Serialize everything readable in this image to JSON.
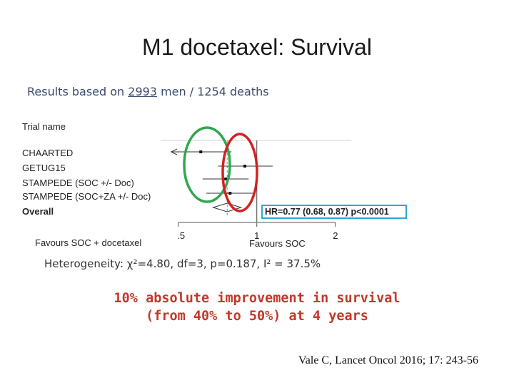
{
  "title": "M1 docetaxel: Survival",
  "subtitle": {
    "prefix": "Results based on ",
    "men": "2993",
    "middle": " men / 1254 deaths"
  },
  "chart_data": {
    "type": "forest",
    "column_header": "Trial name",
    "x_scale": "log",
    "xlim": [
      0.42,
      2.3
    ],
    "x_ticks": [
      0.5,
      1,
      2
    ],
    "x_tick_labels": [
      ".5",
      "1",
      "2"
    ],
    "reference_line": 1,
    "pooled_estimate_line": 0.77,
    "rows": [
      {
        "name": "CHAARTED",
        "hr": 0.61,
        "ci": [
          0.47,
          0.8
        ],
        "arrow_left": true,
        "bold": false,
        "kind": "study"
      },
      {
        "name": "GETUG15",
        "hr": 0.9,
        "ci": [
          0.71,
          1.15
        ],
        "bold": false,
        "kind": "study"
      },
      {
        "name": "STAMPEDE (SOC +/- Doc)",
        "hr": 0.76,
        "ci": [
          0.62,
          0.93
        ],
        "bold": false,
        "kind": "study"
      },
      {
        "name": "STAMPEDE (SOC+ZA +/- Doc)",
        "hr": 0.79,
        "ci": [
          0.64,
          0.98
        ],
        "bold": false,
        "kind": "study"
      },
      {
        "name": "Overall",
        "hr": 0.77,
        "ci": [
          0.68,
          0.87
        ],
        "bold": true,
        "kind": "pooled"
      }
    ],
    "favours_left": "Favours SOC + docetaxel",
    "favours_right": "Favours SOC",
    "summary_label": "HR=0.77 (0.68, 0.87) p<0.0001"
  },
  "heterogeneity": "Heterogeneity: χ²=4.80, df=3, p=0.187, I² = 37.5%",
  "conclusion": {
    "line1": "10% absolute improvement in survival",
    "line2": "(from 40% to 50%) at 4 years"
  },
  "citation": "Vale C, Lancet Oncol 2016; 17: 243-56",
  "colors": {
    "green_circle": "#2fa84f",
    "red_circle": "#d62020",
    "summary_box": "#2aa7d6",
    "conclusion_text": "#c0392b"
  }
}
